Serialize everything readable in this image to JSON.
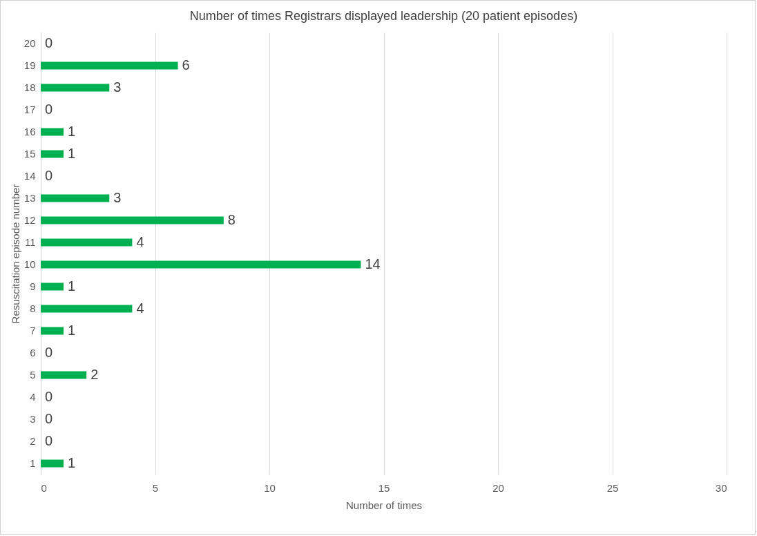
{
  "chart_data": {
    "type": "bar",
    "orientation": "horizontal",
    "title": "Number of times Registrars displayed leadership (20 patient episodes)",
    "xlabel": "Number of times",
    "ylabel": "Resuscitation episode number",
    "categories": [
      "20",
      "19",
      "18",
      "17",
      "16",
      "15",
      "14",
      "13",
      "12",
      "11",
      "10",
      "9",
      "8",
      "7",
      "6",
      "5",
      "4",
      "3",
      "2",
      "1"
    ],
    "values": [
      0,
      6,
      3,
      0,
      1,
      1,
      0,
      3,
      8,
      4,
      14,
      1,
      4,
      1,
      0,
      2,
      0,
      0,
      0,
      1
    ],
    "color": "#00b050",
    "xlim": [
      0,
      30
    ],
    "xticks": [
      0,
      5,
      10,
      15,
      20,
      25,
      30
    ],
    "grid": "x",
    "data_labels": true
  }
}
